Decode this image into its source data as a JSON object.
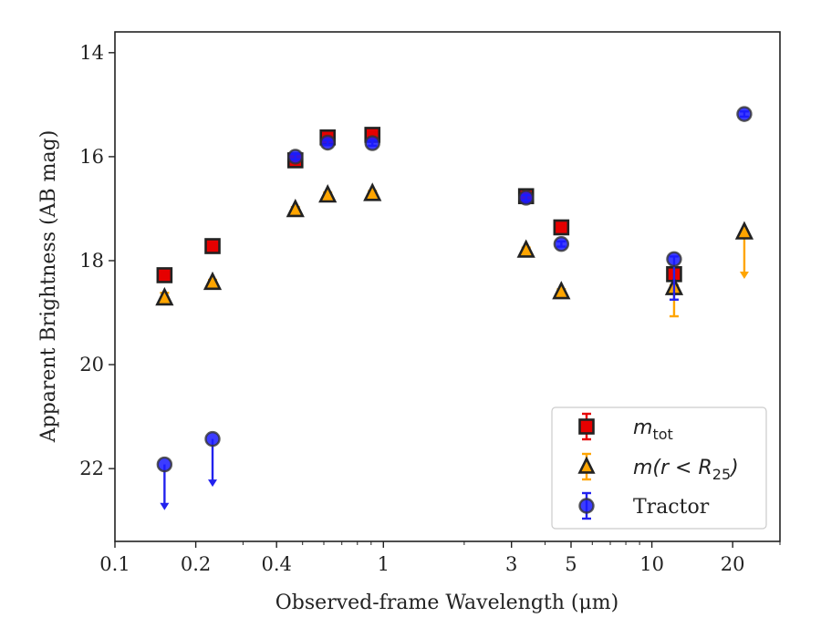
{
  "chart_data": {
    "type": "scatter",
    "xlabel": "Observed-frame Wavelength (μm)",
    "ylabel": "Apparent Brightness (AB mag)",
    "x_scale": "log",
    "xlim": [
      0.1,
      30
    ],
    "ylim": [
      23.4,
      13.6
    ],
    "y_inverted": true,
    "x_ticks": [
      {
        "value": 0.1,
        "label": "0.1"
      },
      {
        "value": 0.2,
        "label": "0.2"
      },
      {
        "value": 0.4,
        "label": "0.4"
      },
      {
        "value": 1,
        "label": "1"
      },
      {
        "value": 3,
        "label": "3"
      },
      {
        "value": 5,
        "label": "5"
      },
      {
        "value": 10,
        "label": "10"
      },
      {
        "value": 20,
        "label": "20"
      }
    ],
    "y_ticks": [
      {
        "value": 14,
        "label": "14"
      },
      {
        "value": 16,
        "label": "16"
      },
      {
        "value": 18,
        "label": "18"
      },
      {
        "value": 20,
        "label": "20"
      },
      {
        "value": 22,
        "label": "22"
      }
    ],
    "grid": false,
    "legend_position": "lower-right",
    "series": [
      {
        "name": "m_tot",
        "legend_main": "m",
        "legend_sub": "tot",
        "marker": "square",
        "color": "#e60000",
        "edge_color": "#222222",
        "points": [
          {
            "x": 0.153,
            "y": 18.28,
            "err": 0.05
          },
          {
            "x": 0.231,
            "y": 17.72,
            "err": 0.05
          },
          {
            "x": 0.47,
            "y": 16.07,
            "err": 0.08
          },
          {
            "x": 0.62,
            "y": 15.63,
            "err": 0.06
          },
          {
            "x": 0.91,
            "y": 15.58,
            "err": 0.06
          },
          {
            "x": 3.4,
            "y": 16.76,
            "err": 0.05
          },
          {
            "x": 4.6,
            "y": 17.36,
            "err": 0.05
          },
          {
            "x": 12.1,
            "y": 18.26,
            "err": 0.05
          }
        ]
      },
      {
        "name": "m(r<R25)",
        "legend_main": "m(r < R",
        "legend_sub": "25",
        "legend_tail": ")",
        "marker": "triangle",
        "color": "#ffa500",
        "edge_color": "#222222",
        "points": [
          {
            "x": 0.153,
            "y": 18.72,
            "err": 0.1
          },
          {
            "x": 0.231,
            "y": 18.42,
            "err": 0.05
          },
          {
            "x": 0.47,
            "y": 17.02,
            "err": 0.05
          },
          {
            "x": 0.62,
            "y": 16.74,
            "err": 0.05
          },
          {
            "x": 0.91,
            "y": 16.71,
            "err": 0.05
          },
          {
            "x": 3.4,
            "y": 17.8,
            "err": 0.05
          },
          {
            "x": 4.6,
            "y": 18.6,
            "err": 0.05
          },
          {
            "x": 12.1,
            "y": 18.52,
            "err_low": 0.05,
            "err_high": 0.55
          },
          {
            "x": 22.1,
            "y": 17.45,
            "upper_limit": true,
            "arrow_to": 18.35
          }
        ]
      },
      {
        "name": "Tractor",
        "legend_main": "Tractor",
        "marker": "circle",
        "color": "#0000ff",
        "edge_color": "#333333",
        "points": [
          {
            "x": 0.153,
            "y": 21.92,
            "upper_limit": true,
            "arrow_to": 22.8
          },
          {
            "x": 0.231,
            "y": 21.43,
            "upper_limit": true,
            "arrow_to": 22.35
          },
          {
            "x": 0.47,
            "y": 16.0,
            "err": 0.05
          },
          {
            "x": 0.62,
            "y": 15.73,
            "err": 0.05
          },
          {
            "x": 0.91,
            "y": 15.74,
            "err": 0.05
          },
          {
            "x": 3.4,
            "y": 16.79,
            "err": 0.05
          },
          {
            "x": 4.6,
            "y": 17.68,
            "err": 0.05
          },
          {
            "x": 12.1,
            "y": 17.97,
            "err_low": 0.05,
            "err_high": 0.78
          },
          {
            "x": 22.1,
            "y": 15.18,
            "err": 0.05
          }
        ]
      }
    ]
  }
}
